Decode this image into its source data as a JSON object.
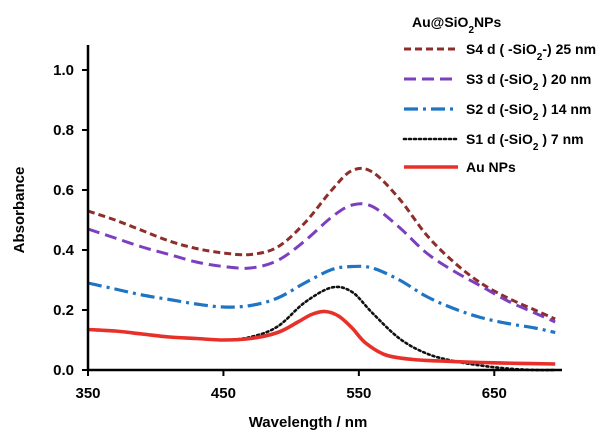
{
  "chart_data": {
    "type": "line",
    "xlabel": "Wavelength / nm",
    "ylabel": "Absorbance",
    "xlim": [
      350,
      700
    ],
    "ylim": [
      0,
      1.05
    ],
    "xticks": [
      350,
      450,
      550,
      650
    ],
    "xtick_labels": [
      "350",
      "450",
      "550",
      "650"
    ],
    "yticks": [
      0,
      0.2,
      0.4,
      0.6,
      0.8,
      1.0
    ],
    "ytick_labels": [
      "0.0",
      "0.2",
      "0.4",
      "0.6",
      "0.8",
      "1.0"
    ],
    "grid": false,
    "legend_title": "Au@SiO2NPs",
    "legend_position": "top-right",
    "series": [
      {
        "name": "S4 d ( -SiO2-) 25 nm",
        "color": "#8e2e2b",
        "dash": "dash",
        "x": [
          350,
          370,
          390,
          410,
          430,
          450,
          470,
          490,
          510,
          530,
          545,
          560,
          580,
          600,
          620,
          640,
          660,
          680,
          695
        ],
        "y": [
          0.53,
          0.5,
          0.465,
          0.43,
          0.405,
          0.39,
          0.385,
          0.41,
          0.49,
          0.6,
          0.665,
          0.66,
          0.57,
          0.45,
          0.36,
          0.29,
          0.24,
          0.2,
          0.17
        ]
      },
      {
        "name": "S3 d (-SiO2 ) 20 nm",
        "color": "#7b3fbf",
        "dash": "longdash",
        "x": [
          350,
          370,
          390,
          410,
          430,
          450,
          470,
          490,
          510,
          530,
          545,
          560,
          580,
          600,
          620,
          640,
          660,
          680,
          695
        ],
        "y": [
          0.47,
          0.44,
          0.41,
          0.385,
          0.36,
          0.345,
          0.34,
          0.365,
          0.43,
          0.51,
          0.55,
          0.545,
          0.475,
          0.39,
          0.33,
          0.28,
          0.23,
          0.19,
          0.16
        ]
      },
      {
        "name": "S2 d (-SiO2 ) 14 nm",
        "color": "#1f74c4",
        "dash": "dashdot",
        "x": [
          350,
          370,
          390,
          410,
          430,
          450,
          470,
          490,
          510,
          530,
          545,
          560,
          580,
          600,
          620,
          640,
          660,
          680,
          695
        ],
        "y": [
          0.29,
          0.27,
          0.25,
          0.235,
          0.22,
          0.21,
          0.215,
          0.24,
          0.29,
          0.335,
          0.345,
          0.34,
          0.3,
          0.245,
          0.205,
          0.175,
          0.155,
          0.14,
          0.125
        ]
      },
      {
        "name": "S1 d (-SiO2 ) 7 nm",
        "color": "#111111",
        "dash": "dot",
        "x": [
          350,
          370,
          390,
          410,
          430,
          450,
          470,
          490,
          510,
          530,
          545,
          560,
          580,
          600,
          620,
          640,
          660,
          680,
          695
        ],
        "y": [
          0.135,
          0.13,
          0.12,
          0.11,
          0.105,
          0.1,
          0.11,
          0.145,
          0.225,
          0.275,
          0.26,
          0.19,
          0.105,
          0.055,
          0.03,
          0.015,
          0.005,
          0.0,
          0.0
        ]
      },
      {
        "name": "Au NPs",
        "color": "#e8302a",
        "dash": "solid",
        "x": [
          350,
          370,
          390,
          410,
          430,
          450,
          470,
          490,
          505,
          515,
          525,
          535,
          545,
          555,
          570,
          590,
          610,
          640,
          670,
          695
        ],
        "y": [
          0.135,
          0.13,
          0.12,
          0.11,
          0.105,
          0.1,
          0.105,
          0.125,
          0.16,
          0.185,
          0.195,
          0.18,
          0.14,
          0.09,
          0.05,
          0.035,
          0.03,
          0.025,
          0.022,
          0.02
        ]
      }
    ]
  }
}
